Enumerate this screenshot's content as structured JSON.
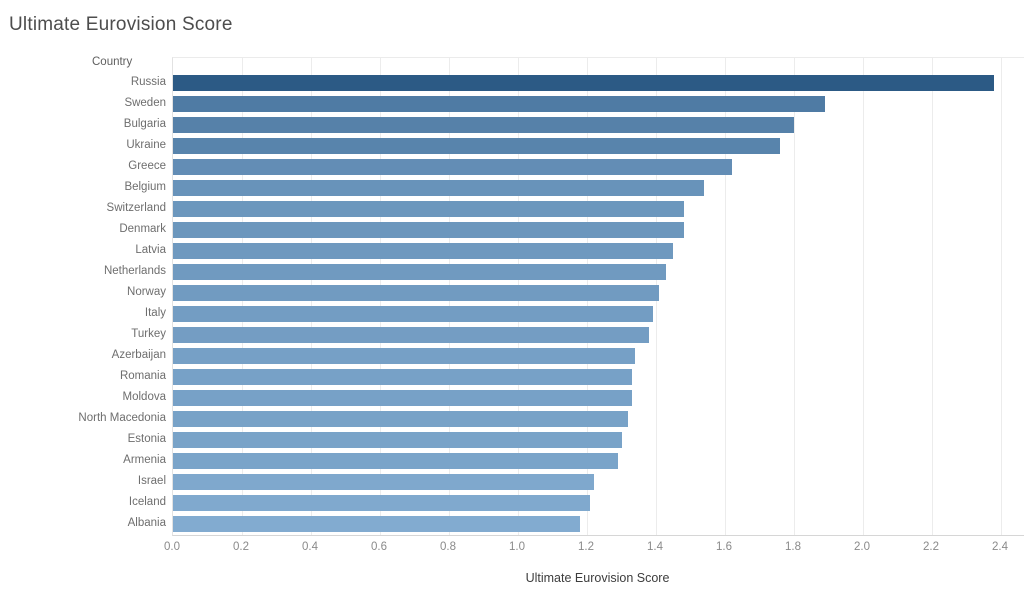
{
  "title": "Ultimate Eurovision Score",
  "column_header": "Country",
  "chart_data": {
    "type": "bar",
    "orientation": "horizontal",
    "title": "Ultimate Eurovision Score",
    "xlabel": "Ultimate Eurovision Score",
    "ylabel": "Country",
    "xlim": [
      0,
      2.4
    ],
    "grid": "vertical",
    "sort": "descending",
    "x_ticks": [
      0,
      0.2,
      0.4,
      0.6,
      0.8,
      1.0,
      1.2,
      1.4,
      1.6,
      1.8,
      2.0,
      2.2,
      2.4
    ],
    "x_tick_labels": [
      "0.0",
      "0.2",
      "0.4",
      "0.6",
      "0.8",
      "1.0",
      "1.2",
      "1.4",
      "1.6",
      "1.8",
      "2.0",
      "2.2",
      "2.4"
    ],
    "categories": [
      "Russia",
      "Sweden",
      "Bulgaria",
      "Ukraine",
      "Greece",
      "Belgium",
      "Switzerland",
      "Denmark",
      "Latvia",
      "Netherlands",
      "Norway",
      "Italy",
      "Turkey",
      "Azerbaijan",
      "Romania",
      "Moldova",
      "North Macedonia",
      "Estonia",
      "Armenia",
      "Israel",
      "Iceland",
      "Albania"
    ],
    "values": [
      2.38,
      1.89,
      1.8,
      1.76,
      1.62,
      1.54,
      1.48,
      1.48,
      1.45,
      1.43,
      1.41,
      1.39,
      1.38,
      1.34,
      1.33,
      1.33,
      1.32,
      1.3,
      1.29,
      1.22,
      1.21,
      1.18
    ],
    "bar_colors": [
      "#2c5a85",
      "#4f7ba4",
      "#5681a9",
      "#5884ac",
      "#638db5",
      "#6893ba",
      "#6c97bd",
      "#6c97bd",
      "#6f99bf",
      "#709ac0",
      "#719bc1",
      "#739dc3",
      "#749dc3",
      "#76a0c6",
      "#77a1c7",
      "#77a1c7",
      "#78a2c7",
      "#79a3c8",
      "#7aa4c9",
      "#7fa8cd",
      "#80a9ce",
      "#82abd0"
    ],
    "color_scale": {
      "dark": "#2c5a85",
      "light": "#82abd0"
    }
  }
}
